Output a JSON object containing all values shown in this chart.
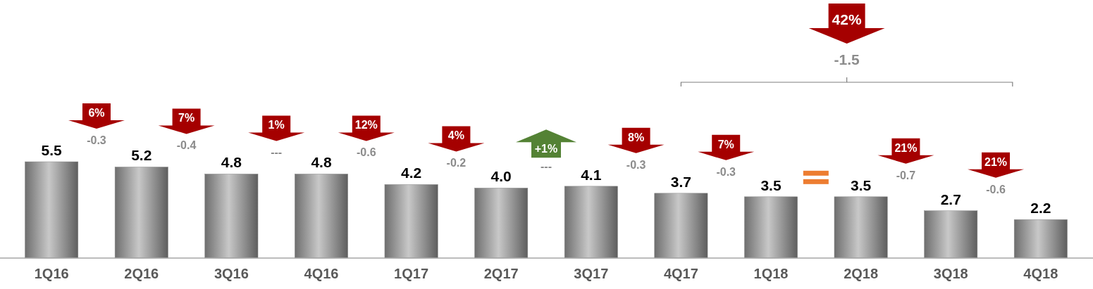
{
  "chart_data": {
    "type": "bar",
    "categories": [
      "1Q16",
      "2Q16",
      "3Q16",
      "4Q16",
      "1Q17",
      "2Q17",
      "3Q17",
      "4Q17",
      "1Q18",
      "2Q18",
      "3Q18",
      "4Q18"
    ],
    "values": [
      5.5,
      5.2,
      4.8,
      4.8,
      4.2,
      4.0,
      4.1,
      3.7,
      3.5,
      3.5,
      2.7,
      2.2
    ],
    "color": "#8c8c8c",
    "value_labels": [
      "5.5",
      "5.2",
      "4.8",
      "4.8",
      "4.2",
      "4.0",
      "4.1",
      "3.7",
      "3.5",
      "3.5",
      "2.7",
      "2.2"
    ],
    "ylim": [
      0,
      5.5
    ],
    "tick_labels": "x",
    "annotations": [
      "6%",
      "-0.3",
      "7%",
      "-0.4",
      "1%",
      "---",
      "12%",
      "-0.6",
      "4%",
      "-0.2",
      "+1%",
      "---",
      "8%",
      "-0.3",
      "7%",
      "-0.3",
      "21%",
      "-0.7",
      "21%",
      "-0.6",
      "42%",
      "-1.5"
    ]
  }
}
